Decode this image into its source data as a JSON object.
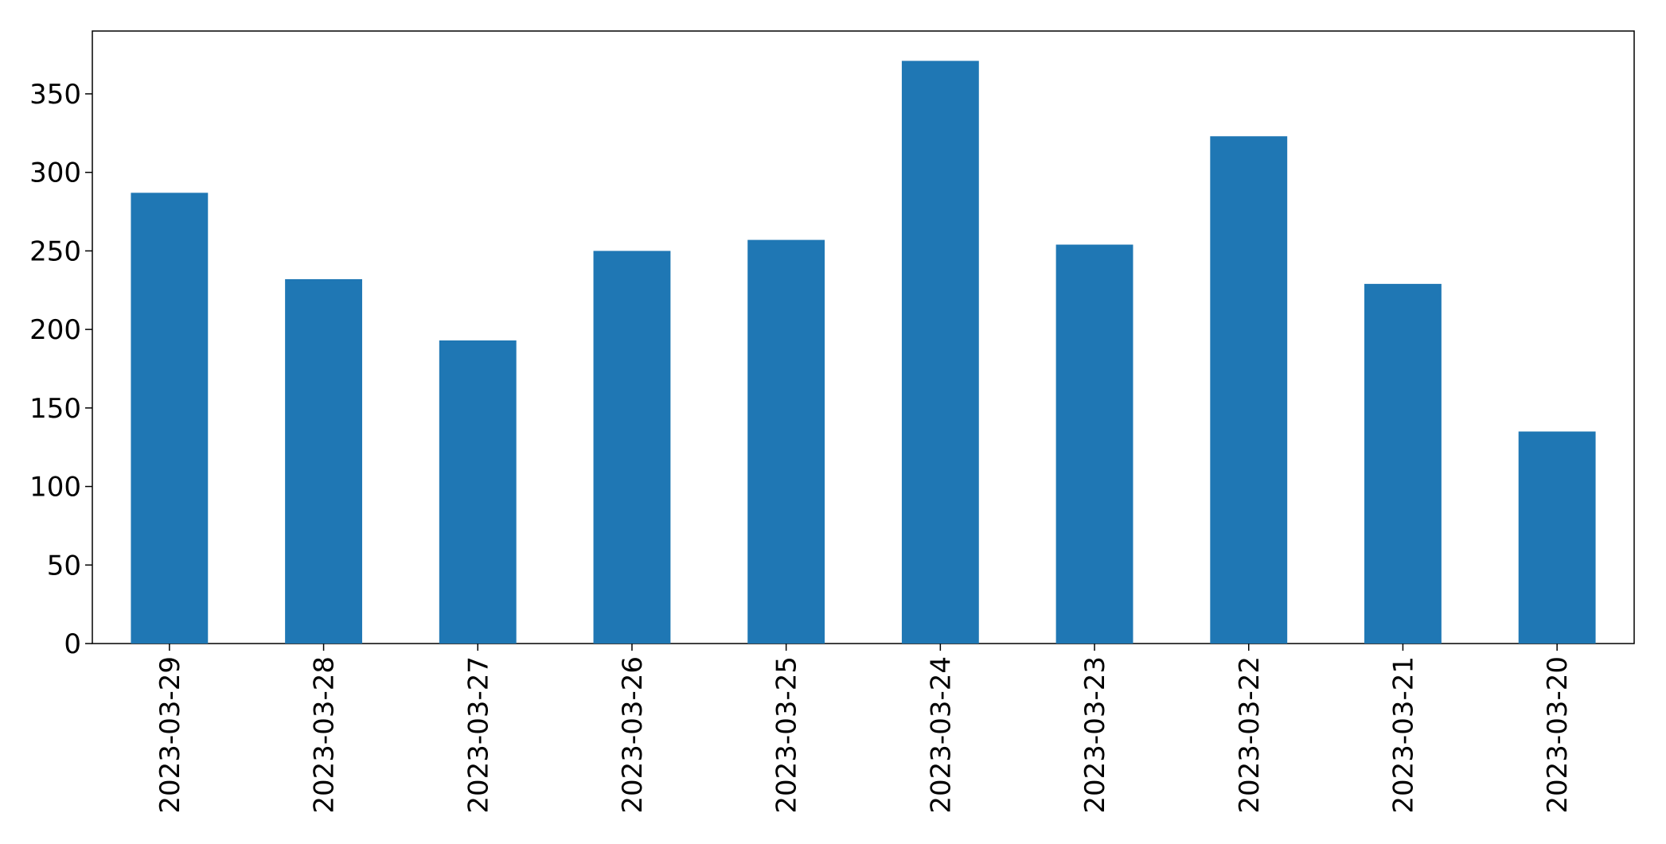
{
  "chart_data": {
    "type": "bar",
    "categories": [
      "2023-03-29",
      "2023-03-28",
      "2023-03-27",
      "2023-03-26",
      "2023-03-25",
      "2023-03-24",
      "2023-03-23",
      "2023-03-22",
      "2023-03-21",
      "2023-03-20"
    ],
    "values": [
      287,
      232,
      193,
      250,
      257,
      371,
      254,
      323,
      229,
      135
    ],
    "color": "#1f77b4",
    "ylim": [
      0,
      390
    ],
    "yticks": [
      0,
      50,
      100,
      150,
      200,
      250,
      300,
      350
    ],
    "grid": false
  }
}
